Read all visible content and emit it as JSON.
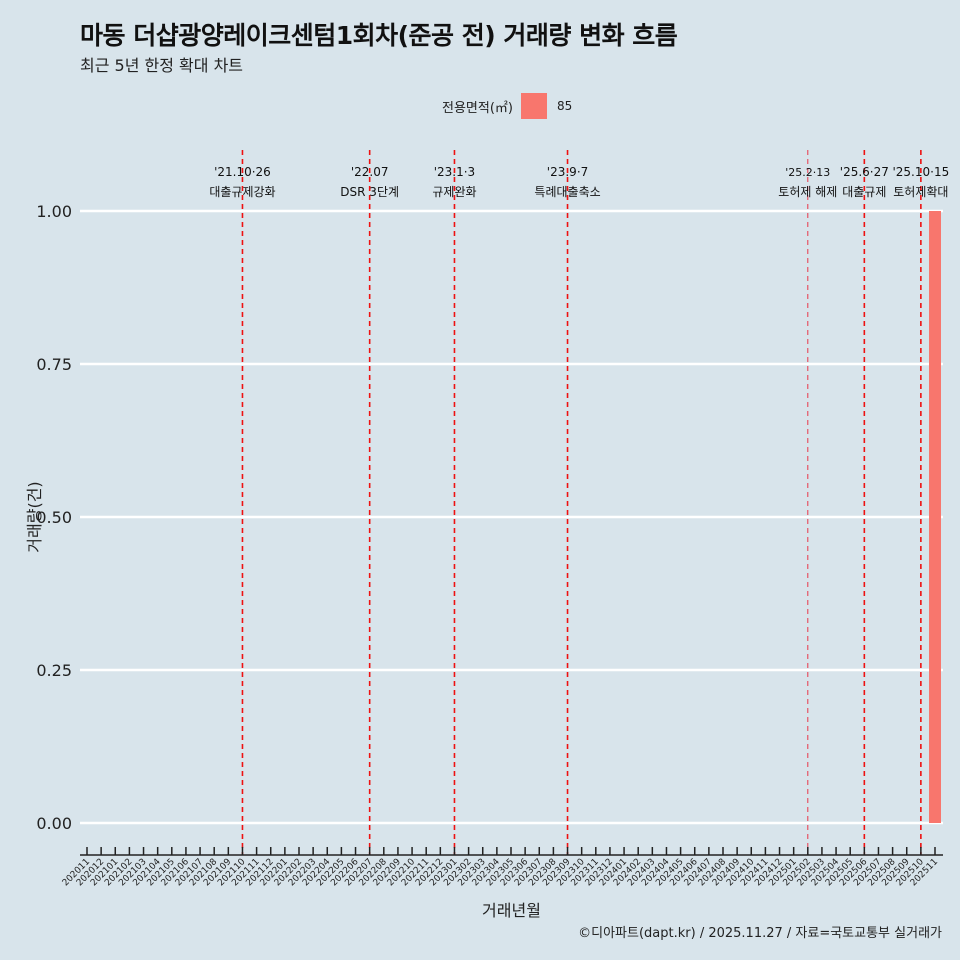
{
  "title": "마동 더샵광양레이크센텀1회차(준공 전) 거래량 변화 흐름",
  "subtitle": "최근 5년 한정 확대 차트",
  "caption": "©디아파트(dapt.kr) / 2025.11.27 / 자료=국토교통부 실거래가",
  "chart_data": {
    "type": "bar",
    "title": "마동 더샵광양레이크센텀1회차(준공 전) 거래량 변화 흐름",
    "xlabel": "거래년월",
    "ylabel": "거래량(건)",
    "ylim": [
      0,
      1
    ],
    "yticks": [
      "0.00",
      "0.25",
      "0.50",
      "0.75",
      "1.00"
    ],
    "ytick_values": [
      0,
      0.25,
      0.5,
      0.75,
      1
    ],
    "legend": {
      "title": "전용면적(㎡)",
      "entries": [
        "85"
      ],
      "placement": "top"
    },
    "color": "#f8766d",
    "categories": [
      "202011",
      "202012",
      "202101",
      "202102",
      "202103",
      "202104",
      "202105",
      "202106",
      "202107",
      "202108",
      "202109",
      "202110",
      "202111",
      "202112",
      "202201",
      "202202",
      "202203",
      "202204",
      "202205",
      "202206",
      "202207",
      "202208",
      "202209",
      "202210",
      "202211",
      "202212",
      "202301",
      "202302",
      "202303",
      "202304",
      "202305",
      "202306",
      "202307",
      "202308",
      "202309",
      "202310",
      "202311",
      "202312",
      "202401",
      "202402",
      "202403",
      "202404",
      "202405",
      "202406",
      "202407",
      "202408",
      "202409",
      "202410",
      "202411",
      "202412",
      "202501",
      "202502",
      "202503",
      "202504",
      "202505",
      "202506",
      "202507",
      "202508",
      "202509",
      "202510",
      "202511"
    ],
    "series": [
      {
        "name": "85",
        "bars": [
          {
            "x": "202511",
            "value": 1
          }
        ]
      }
    ],
    "annotations": [
      {
        "x": "202110",
        "date": "'21.10·26",
        "label": "대출규제강화"
      },
      {
        "x": "202207",
        "date": "'22.07",
        "label": "DSR 3단계"
      },
      {
        "x": "202301",
        "date": "'23.1·3",
        "label": "규제완화"
      },
      {
        "x": "202309",
        "date": "'23.9·7",
        "label": "특례대출축소"
      },
      {
        "x": "202502",
        "date": "'25.2·13",
        "label": "토허제 해제",
        "thin": true
      },
      {
        "x": "202506",
        "date": "'25.6·27",
        "label": "대출규제"
      },
      {
        "x": "202510",
        "date": "'25.10·15",
        "label": "토허제확대"
      }
    ]
  }
}
